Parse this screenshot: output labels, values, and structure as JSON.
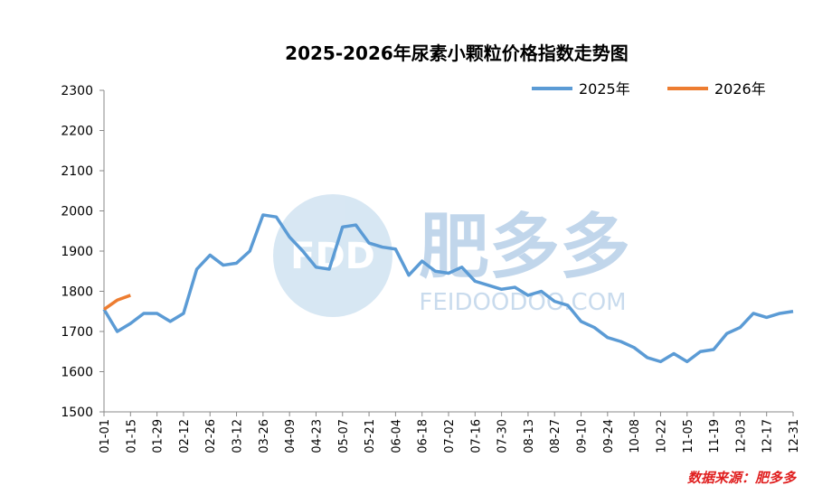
{
  "chart_data": {
    "type": "line",
    "title": "2025-2026年尿素小颗粒价格指数走势图",
    "categories": [
      "01-01",
      null,
      "01-15",
      null,
      "01-29",
      null,
      "02-12",
      null,
      "02-26",
      null,
      "03-12",
      null,
      "03-26",
      null,
      "04-09",
      null,
      "04-23",
      null,
      "05-07",
      null,
      "05-21",
      null,
      "06-04",
      null,
      "06-18",
      null,
      "07-02",
      null,
      "07-16",
      null,
      "07-30",
      null,
      "08-13",
      null,
      "08-27",
      null,
      "09-10",
      null,
      "09-24",
      null,
      "10-08",
      null,
      "10-22",
      null,
      "11-05",
      null,
      "11-19",
      null,
      "12-03",
      null,
      "12-17",
      null,
      "12-31"
    ],
    "series": [
      {
        "name": "2025年",
        "color": "#5b9bd5",
        "values": [
          1755,
          1700,
          1720,
          1745,
          1745,
          1725,
          1745,
          1855,
          1890,
          1865,
          1870,
          1900,
          1990,
          1985,
          1935,
          1900,
          1860,
          1855,
          1960,
          1965,
          1920,
          1910,
          1905,
          1840,
          1875,
          1850,
          1845,
          1860,
          1825,
          1815,
          1805,
          1810,
          1790,
          1800,
          1775,
          1765,
          1725,
          1710,
          1685,
          1675,
          1660,
          1635,
          1625,
          1645,
          1625,
          1650,
          1655,
          1695,
          1710,
          1745,
          1735,
          1745,
          1750
        ]
      },
      {
        "name": "2026年",
        "color": "#ed7d31",
        "values": [
          1755,
          1778,
          1790,
          null,
          null,
          null,
          null,
          null,
          null,
          null,
          null,
          null,
          null,
          null,
          null,
          null,
          null,
          null,
          null,
          null,
          null,
          null,
          null,
          null,
          null,
          null,
          null,
          null,
          null,
          null,
          null,
          null,
          null,
          null,
          null,
          null,
          null,
          null,
          null,
          null,
          null,
          null,
          null,
          null,
          null,
          null,
          null,
          null,
          null,
          null,
          null,
          null,
          null
        ]
      }
    ],
    "ylim": [
      1500,
      2300
    ],
    "yticks": [
      1500,
      1600,
      1700,
      1800,
      1900,
      2000,
      2100,
      2200,
      2300
    ],
    "legend": "top-right",
    "source": "数据来源：肥多多"
  },
  "watermark": {
    "logo": "FDD",
    "name": "肥多多",
    "url": "FEIDOODOO.COM"
  }
}
